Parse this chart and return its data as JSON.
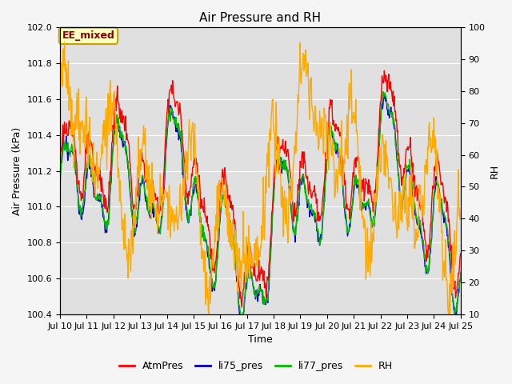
{
  "title": "Air Pressure and RH",
  "xlabel": "Time",
  "ylabel_left": "Air Pressure (kPa)",
  "ylabel_right": "RH",
  "annotation": "EE_mixed",
  "ylim_left": [
    100.4,
    102.0
  ],
  "ylim_right": [
    10,
    100
  ],
  "yticks_left": [
    100.4,
    100.6,
    100.8,
    101.0,
    101.2,
    101.4,
    101.6,
    101.8,
    102.0
  ],
  "yticks_right": [
    10,
    20,
    30,
    40,
    50,
    60,
    70,
    80,
    90,
    100
  ],
  "x_tick_labels": [
    "Jul 10",
    "Jul 11",
    "Jul 12",
    "Jul 13",
    "Jul 14",
    "Jul 15",
    "Jul 16",
    "Jul 17",
    "Jul 18",
    "Jul 19",
    "Jul 20",
    "Jul 21",
    "Jul 22",
    "Jul 23",
    "Jul 24",
    "Jul 25"
  ],
  "colors": {
    "AtmPres": "#ff0000",
    "li75_pres": "#0000cc",
    "li77_pres": "#00bb00",
    "RH": "#ffaa00"
  },
  "legend_labels": [
    "AtmPres",
    "li75_pres",
    "li77_pres",
    "RH"
  ],
  "plot_bg_color": "#e0e0e0",
  "fig_bg_color": "#f5f5f5",
  "grid_color": "#ffffff",
  "title_fontsize": 11,
  "axis_fontsize": 9,
  "tick_fontsize": 8,
  "legend_fontsize": 9
}
